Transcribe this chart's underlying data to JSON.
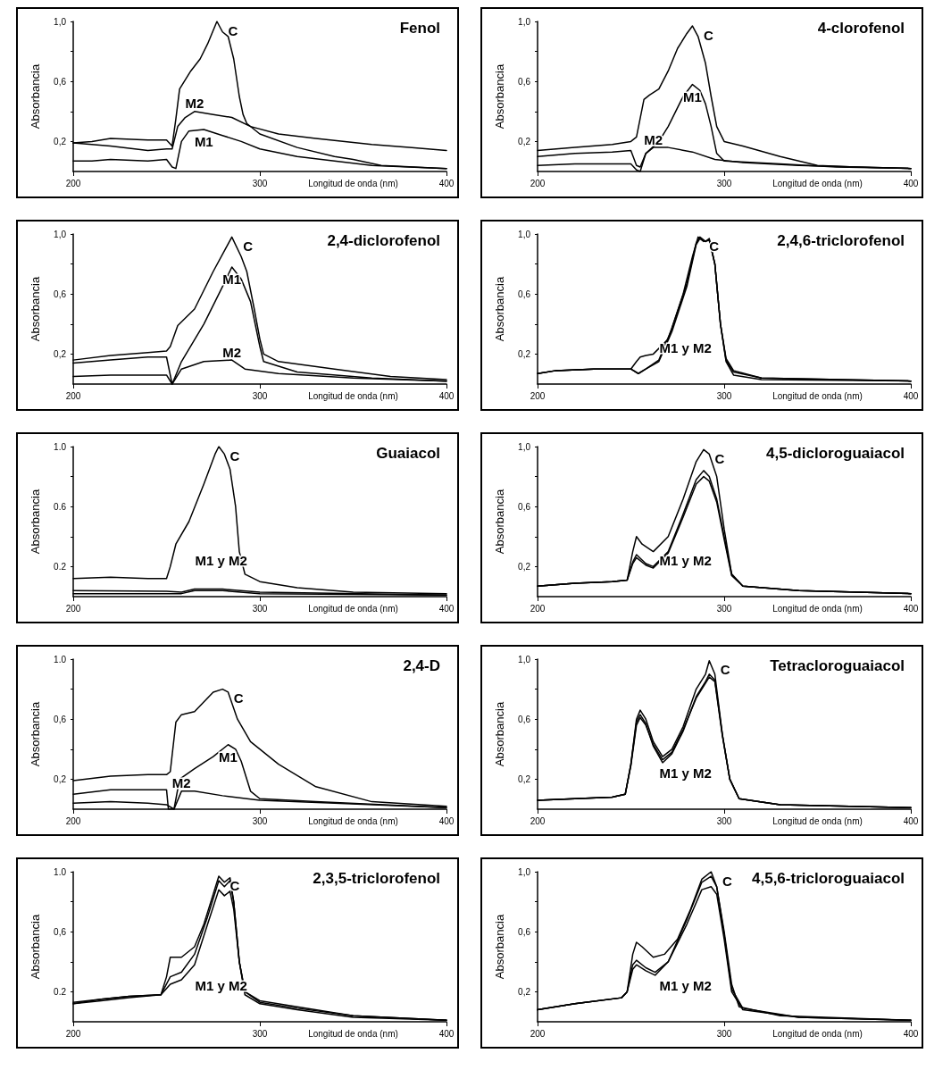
{
  "chart_data": [
    {
      "type": "line",
      "title": "Fenol",
      "xlabel": "Longitud de onda (nm)",
      "ylabel": "Absorbancia",
      "xlim": [
        200,
        400
      ],
      "ylim": [
        0,
        1.0
      ],
      "xticks": [
        200,
        300,
        400
      ],
      "yticks": [
        {
          "value": 0.2,
          "label": "0,2"
        },
        {
          "value": 0.4,
          "label": null
        },
        {
          "value": 0.6,
          "label": "0,6"
        },
        {
          "value": 0.8,
          "label": null
        },
        {
          "value": 1.0,
          "label": "1,0"
        }
      ],
      "series": [
        {
          "name": "C",
          "color": "#000000",
          "x": [
            200,
            210,
            220,
            240,
            250,
            253,
            255,
            257,
            263,
            268,
            272,
            277,
            280,
            283,
            286,
            289,
            291,
            293,
            300,
            320,
            340,
            350,
            365,
            400
          ],
          "values": [
            0.19,
            0.2,
            0.22,
            0.21,
            0.21,
            0.17,
            0.35,
            0.55,
            0.67,
            0.75,
            0.85,
            1.0,
            0.93,
            0.9,
            0.75,
            0.5,
            0.38,
            0.32,
            0.25,
            0.16,
            0.1,
            0.08,
            0.04,
            0.02
          ]
        },
        {
          "name": "M1",
          "color": "#000000",
          "x": [
            200,
            210,
            220,
            240,
            250,
            253,
            255,
            258,
            262,
            270,
            280,
            290,
            300,
            320,
            340,
            360,
            380,
            400
          ],
          "values": [
            0.07,
            0.07,
            0.08,
            0.07,
            0.08,
            0.03,
            0.02,
            0.2,
            0.27,
            0.28,
            0.24,
            0.2,
            0.15,
            0.1,
            0.07,
            0.04,
            0.03,
            0.02
          ]
        },
        {
          "name": "M2",
          "color": "#000000",
          "x": [
            200,
            210,
            220,
            240,
            250,
            253,
            256,
            260,
            265,
            275,
            285,
            295,
            310,
            330,
            360,
            380,
            400
          ],
          "values": [
            0.19,
            0.18,
            0.17,
            0.14,
            0.15,
            0.15,
            0.3,
            0.36,
            0.4,
            0.38,
            0.36,
            0.3,
            0.25,
            0.22,
            0.18,
            0.16,
            0.14
          ]
        }
      ]
    },
    {
      "type": "line",
      "title": "4-clorofenol",
      "xlabel": "Longitud de onda (nm)",
      "ylabel": "Absorbancia",
      "xlim": [
        200,
        400
      ],
      "ylim": [
        0,
        1.0
      ],
      "xticks": [
        200,
        300,
        400
      ],
      "yticks": [
        {
          "value": 0.2,
          "label": "0,2"
        },
        {
          "value": 0.4,
          "label": null
        },
        {
          "value": 0.6,
          "label": "0,6"
        },
        {
          "value": 0.8,
          "label": null
        },
        {
          "value": 1.0,
          "label": "1,0"
        }
      ],
      "series": [
        {
          "name": "C",
          "color": "#000000",
          "x": [
            200,
            220,
            240,
            250,
            253,
            257,
            260,
            265,
            270,
            275,
            280,
            283,
            286,
            290,
            293,
            296,
            300,
            310,
            330,
            350,
            370,
            400
          ],
          "values": [
            0.14,
            0.16,
            0.18,
            0.2,
            0.23,
            0.48,
            0.51,
            0.55,
            0.67,
            0.82,
            0.92,
            0.97,
            0.9,
            0.72,
            0.5,
            0.3,
            0.2,
            0.17,
            0.1,
            0.04,
            0.03,
            0.02
          ]
        },
        {
          "name": "M1",
          "color": "#000000",
          "x": [
            200,
            220,
            240,
            250,
            253,
            255,
            258,
            265,
            270,
            278,
            283,
            287,
            290,
            293,
            296,
            300,
            330,
            360,
            400
          ],
          "values": [
            0.1,
            0.12,
            0.13,
            0.14,
            0.04,
            0.03,
            0.12,
            0.2,
            0.3,
            0.5,
            0.58,
            0.54,
            0.45,
            0.3,
            0.12,
            0.07,
            0.05,
            0.03,
            0.02
          ]
        },
        {
          "name": "M2",
          "color": "#000000",
          "x": [
            200,
            220,
            240,
            250,
            253,
            255,
            258,
            262,
            270,
            283,
            295,
            310,
            340,
            400
          ],
          "values": [
            0.04,
            0.05,
            0.05,
            0.05,
            0.01,
            0.0,
            0.12,
            0.16,
            0.16,
            0.13,
            0.08,
            0.06,
            0.04,
            0.02
          ]
        }
      ]
    },
    {
      "type": "line",
      "title": "2,4-diclorofenol",
      "xlabel": "Longitud de onda (nm)",
      "ylabel": "Absorbancia",
      "xlim": [
        200,
        400
      ],
      "ylim": [
        0,
        1.0
      ],
      "xticks": [
        200,
        300,
        400
      ],
      "yticks": [
        {
          "value": 0.2,
          "label": "0,2"
        },
        {
          "value": 0.4,
          "label": null
        },
        {
          "value": 0.6,
          "label": "0,6"
        },
        {
          "value": 0.8,
          "label": null
        },
        {
          "value": 1.0,
          "label": "1,0"
        }
      ],
      "series": [
        {
          "name": "C",
          "color": "#000000",
          "x": [
            200,
            220,
            240,
            250,
            252,
            256,
            265,
            275,
            285,
            290,
            293,
            297,
            300,
            302,
            310,
            340,
            370,
            400
          ],
          "values": [
            0.16,
            0.19,
            0.21,
            0.22,
            0.25,
            0.39,
            0.5,
            0.75,
            0.98,
            0.85,
            0.75,
            0.5,
            0.3,
            0.2,
            0.15,
            0.1,
            0.05,
            0.03
          ]
        },
        {
          "name": "M1",
          "color": "#000000",
          "x": [
            200,
            220,
            240,
            250,
            253,
            258,
            270,
            280,
            285,
            290,
            295,
            300,
            302,
            320,
            360,
            400
          ],
          "values": [
            0.14,
            0.16,
            0.18,
            0.18,
            0.0,
            0.15,
            0.4,
            0.65,
            0.78,
            0.7,
            0.55,
            0.25,
            0.15,
            0.08,
            0.04,
            0.02
          ]
        },
        {
          "name": "M2",
          "color": "#000000",
          "x": [
            200,
            220,
            240,
            250,
            253,
            258,
            270,
            285,
            292,
            310,
            350,
            400
          ],
          "values": [
            0.05,
            0.06,
            0.06,
            0.06,
            0.0,
            0.1,
            0.15,
            0.16,
            0.1,
            0.07,
            0.04,
            0.02
          ]
        }
      ]
    },
    {
      "type": "line",
      "title": "2,4,6-triclorofenol",
      "xlabel": "Longitud de onda (nm)",
      "ylabel": "Absorbancia",
      "xlim": [
        200,
        400
      ],
      "ylim": [
        0,
        1.0
      ],
      "xticks": [
        200,
        300,
        400
      ],
      "yticks": [
        {
          "value": 0.2,
          "label": "0,2"
        },
        {
          "value": 0.4,
          "label": null
        },
        {
          "value": 0.6,
          "label": "0,6"
        },
        {
          "value": 0.8,
          "label": null
        },
        {
          "value": 1.0,
          "label": "1,0"
        }
      ],
      "series": [
        {
          "name": "C",
          "color": "#000000",
          "x": [
            200,
            210,
            230,
            250,
            253,
            255,
            258,
            262,
            270,
            278,
            283,
            286,
            289,
            292,
            295,
            298,
            301,
            305,
            320,
            400
          ],
          "values": [
            0.07,
            0.09,
            0.1,
            0.1,
            0.15,
            0.18,
            0.19,
            0.2,
            0.3,
            0.6,
            0.85,
            0.98,
            0.95,
            0.96,
            0.8,
            0.4,
            0.15,
            0.06,
            0.03,
            0.02
          ]
        },
        {
          "color": "#000000",
          "x": [
            200,
            210,
            230,
            250,
            254,
            258,
            265,
            272,
            280,
            285,
            287,
            290,
            292,
            295,
            298,
            301,
            305,
            320,
            400
          ],
          "values": [
            0.07,
            0.09,
            0.1,
            0.1,
            0.07,
            0.1,
            0.15,
            0.35,
            0.65,
            0.93,
            0.97,
            0.95,
            0.96,
            0.8,
            0.4,
            0.16,
            0.08,
            0.04,
            0.02
          ]
        },
        {
          "color": "#000000",
          "x": [
            200,
            210,
            230,
            250,
            254,
            258,
            265,
            272,
            280,
            285,
            287,
            290,
            292,
            295,
            298,
            301,
            305,
            320,
            400
          ],
          "values": [
            0.07,
            0.09,
            0.1,
            0.1,
            0.07,
            0.1,
            0.16,
            0.37,
            0.67,
            0.94,
            0.98,
            0.95,
            0.97,
            0.8,
            0.4,
            0.17,
            0.09,
            0.04,
            0.02
          ]
        }
      ],
      "annotations": [
        "M1 y M2"
      ]
    },
    {
      "type": "line",
      "title": "Guaiacol",
      "xlabel": "Longitud de onda (nm)",
      "ylabel": "Absorbancia",
      "xlim": [
        200,
        400
      ],
      "ylim": [
        0,
        1.0
      ],
      "xticks": [
        200,
        300,
        400
      ],
      "yticks": [
        {
          "value": 0.2,
          "label": "0.2"
        },
        {
          "value": 0.4,
          "label": null
        },
        {
          "value": 0.6,
          "label": "0.6"
        },
        {
          "value": 0.8,
          "label": null
        },
        {
          "value": 1.0,
          "label": "1.0"
        }
      ],
      "series": [
        {
          "name": "C",
          "color": "#000000",
          "x": [
            200,
            220,
            240,
            250,
            252,
            255,
            262,
            270,
            276,
            278,
            281,
            284,
            287,
            289,
            292,
            300,
            320,
            350,
            400
          ],
          "values": [
            0.12,
            0.13,
            0.12,
            0.12,
            0.2,
            0.35,
            0.5,
            0.75,
            0.95,
            1.0,
            0.95,
            0.85,
            0.6,
            0.3,
            0.15,
            0.1,
            0.06,
            0.03,
            0.02
          ]
        },
        {
          "color": "#000000",
          "x": [
            200,
            250,
            258,
            265,
            280,
            300,
            400
          ],
          "values": [
            0.04,
            0.035,
            0.03,
            0.05,
            0.05,
            0.03,
            0.01
          ]
        },
        {
          "color": "#000000",
          "x": [
            200,
            250,
            258,
            265,
            280,
            300,
            400
          ],
          "values": [
            0.02,
            0.02,
            0.02,
            0.04,
            0.04,
            0.02,
            0.01
          ]
        }
      ],
      "annotations": [
        "M1 y M2"
      ]
    },
    {
      "type": "line",
      "title": "4,5-dicloroguaiacol",
      "xlabel": "Longitud de onda (nm)",
      "ylabel": "Absorbancia",
      "xlim": [
        200,
        400
      ],
      "ylim": [
        0,
        1.0
      ],
      "xticks": [
        200,
        300,
        400
      ],
      "yticks": [
        {
          "value": 0.2,
          "label": "0,2"
        },
        {
          "value": 0.4,
          "label": null
        },
        {
          "value": 0.6,
          "label": "0,6"
        },
        {
          "value": 0.8,
          "label": null
        },
        {
          "value": 1.0,
          "label": "1,0"
        }
      ],
      "series": [
        {
          "name": "C",
          "color": "#000000",
          "x": [
            200,
            220,
            240,
            248,
            251,
            253,
            256,
            262,
            270,
            278,
            285,
            289,
            292,
            296,
            300,
            304,
            310,
            340,
            400
          ],
          "values": [
            0.07,
            0.09,
            0.1,
            0.11,
            0.3,
            0.4,
            0.35,
            0.3,
            0.4,
            0.65,
            0.9,
            0.98,
            0.95,
            0.8,
            0.45,
            0.15,
            0.07,
            0.04,
            0.02
          ]
        },
        {
          "color": "#000000",
          "x": [
            200,
            220,
            240,
            248,
            251,
            253,
            258,
            262,
            270,
            278,
            285,
            289,
            292,
            296,
            300,
            304,
            310,
            340,
            400
          ],
          "values": [
            0.07,
            0.09,
            0.1,
            0.11,
            0.23,
            0.28,
            0.22,
            0.2,
            0.3,
            0.55,
            0.78,
            0.84,
            0.8,
            0.65,
            0.4,
            0.15,
            0.07,
            0.04,
            0.02
          ]
        },
        {
          "color": "#000000",
          "x": [
            200,
            220,
            240,
            248,
            251,
            253,
            258,
            262,
            270,
            278,
            285,
            289,
            292,
            296,
            300,
            304,
            310,
            340,
            400
          ],
          "values": [
            0.07,
            0.09,
            0.1,
            0.11,
            0.22,
            0.26,
            0.21,
            0.19,
            0.29,
            0.53,
            0.75,
            0.8,
            0.77,
            0.63,
            0.38,
            0.14,
            0.07,
            0.04,
            0.02
          ]
        }
      ],
      "annotations": [
        "M1 y M2"
      ]
    },
    {
      "type": "line",
      "title": "2,4-D",
      "xlabel": "Longitud de onda (nm)",
      "ylabel": "Absorbancia",
      "xlim": [
        200,
        400
      ],
      "ylim": [
        0,
        1.0
      ],
      "xticks": [
        200,
        300,
        400
      ],
      "yticks": [
        {
          "value": 0.2,
          "label": "0,2"
        },
        {
          "value": 0.4,
          "label": null
        },
        {
          "value": 0.6,
          "label": "0,6"
        },
        {
          "value": 0.8,
          "label": null
        },
        {
          "value": 1.0,
          "label": "1.0"
        }
      ],
      "series": [
        {
          "name": "C",
          "color": "#000000",
          "x": [
            200,
            220,
            240,
            250,
            252,
            255,
            258,
            265,
            275,
            280,
            283,
            288,
            295,
            310,
            330,
            360,
            400
          ],
          "values": [
            0.19,
            0.22,
            0.23,
            0.23,
            0.25,
            0.58,
            0.63,
            0.65,
            0.78,
            0.8,
            0.78,
            0.6,
            0.45,
            0.3,
            0.15,
            0.05,
            0.02
          ]
        },
        {
          "name": "M1",
          "color": "#000000",
          "x": [
            200,
            220,
            240,
            250,
            251,
            254,
            257,
            265,
            275,
            283,
            287,
            290,
            295,
            300,
            330,
            400
          ],
          "values": [
            0.1,
            0.13,
            0.13,
            0.13,
            0.0,
            0.0,
            0.2,
            0.27,
            0.35,
            0.43,
            0.4,
            0.32,
            0.12,
            0.07,
            0.05,
            0.01
          ]
        },
        {
          "name": "M2",
          "color": "#000000",
          "x": [
            200,
            220,
            240,
            250,
            254,
            258,
            265,
            280,
            300,
            340,
            400
          ],
          "values": [
            0.04,
            0.05,
            0.04,
            0.03,
            0.0,
            0.12,
            0.12,
            0.09,
            0.06,
            0.04,
            0.01
          ]
        }
      ]
    },
    {
      "type": "line",
      "title": "Tetracloroguaiacol",
      "xlabel": "Longitud de onda (nm)",
      "ylabel": "Absorbancia",
      "xlim": [
        200,
        400
      ],
      "ylim": [
        0,
        1.0
      ],
      "xticks": [
        200,
        300,
        400
      ],
      "yticks": [
        {
          "value": 0.2,
          "label": "0,2"
        },
        {
          "value": 0.4,
          "label": null
        },
        {
          "value": 0.6,
          "label": "0,6"
        },
        {
          "value": 0.8,
          "label": null
        },
        {
          "value": 1.0,
          "label": "1,0"
        }
      ],
      "series": [
        {
          "name": "C",
          "color": "#000000",
          "x": [
            200,
            220,
            240,
            247,
            250,
            253,
            255,
            258,
            262,
            267,
            272,
            278,
            285,
            290,
            292,
            295,
            299,
            303,
            308,
            330,
            400
          ],
          "values": [
            0.06,
            0.07,
            0.08,
            0.1,
            0.3,
            0.6,
            0.66,
            0.6,
            0.45,
            0.35,
            0.4,
            0.55,
            0.8,
            0.9,
            0.99,
            0.9,
            0.5,
            0.2,
            0.07,
            0.03,
            0.01
          ]
        },
        {
          "color": "#000000",
          "x": [
            200,
            220,
            240,
            247,
            250,
            253,
            255,
            258,
            262,
            267,
            272,
            278,
            285,
            290,
            292,
            295,
            299,
            303,
            308,
            330,
            400
          ],
          "values": [
            0.06,
            0.07,
            0.08,
            0.1,
            0.3,
            0.58,
            0.63,
            0.57,
            0.42,
            0.31,
            0.37,
            0.52,
            0.75,
            0.85,
            0.9,
            0.86,
            0.5,
            0.2,
            0.07,
            0.03,
            0.01
          ]
        },
        {
          "color": "#000000",
          "x": [
            200,
            220,
            240,
            247,
            250,
            253,
            255,
            258,
            262,
            267,
            272,
            278,
            285,
            290,
            292,
            295,
            299,
            303,
            308,
            330,
            400
          ],
          "values": [
            0.06,
            0.07,
            0.08,
            0.1,
            0.29,
            0.56,
            0.61,
            0.56,
            0.43,
            0.33,
            0.38,
            0.53,
            0.74,
            0.84,
            0.88,
            0.85,
            0.49,
            0.2,
            0.07,
            0.03,
            0.01
          ]
        }
      ],
      "annotations": [
        "M1 y M2"
      ]
    },
    {
      "type": "line",
      "title": "2,3,5-triclorofenol",
      "xlabel": "Longitud de onda (nm)",
      "ylabel": "Absorbancia",
      "xlim": [
        200,
        400
      ],
      "ylim": [
        0,
        1.0
      ],
      "xticks": [
        200,
        300,
        400
      ],
      "yticks": [
        {
          "value": 0.2,
          "label": "0.2"
        },
        {
          "value": 0.4,
          "label": null
        },
        {
          "value": 0.6,
          "label": "0,6"
        },
        {
          "value": 0.8,
          "label": null
        },
        {
          "value": 1.0,
          "label": "1.0"
        }
      ],
      "series": [
        {
          "name": "C",
          "color": "#000000",
          "x": [
            200,
            215,
            230,
            247,
            250,
            252,
            258,
            265,
            270,
            275,
            278,
            281,
            284,
            286,
            289,
            292,
            300,
            320,
            350,
            400
          ],
          "values": [
            0.13,
            0.15,
            0.17,
            0.18,
            0.3,
            0.43,
            0.43,
            0.5,
            0.65,
            0.85,
            0.97,
            0.93,
            0.96,
            0.8,
            0.4,
            0.2,
            0.14,
            0.1,
            0.04,
            0.01
          ]
        },
        {
          "color": "#000000",
          "x": [
            200,
            215,
            230,
            247,
            252,
            258,
            265,
            272,
            278,
            281,
            284,
            286,
            289,
            292,
            300,
            320,
            350,
            400
          ],
          "values": [
            0.12,
            0.15,
            0.17,
            0.18,
            0.3,
            0.33,
            0.45,
            0.7,
            0.94,
            0.9,
            0.94,
            0.8,
            0.4,
            0.2,
            0.13,
            0.09,
            0.04,
            0.01
          ]
        },
        {
          "color": "#000000",
          "x": [
            200,
            215,
            230,
            247,
            252,
            258,
            265,
            272,
            278,
            281,
            284,
            286,
            289,
            292,
            300,
            320,
            350,
            400
          ],
          "values": [
            0.12,
            0.14,
            0.16,
            0.18,
            0.25,
            0.28,
            0.38,
            0.65,
            0.88,
            0.84,
            0.87,
            0.75,
            0.4,
            0.18,
            0.12,
            0.08,
            0.03,
            0.01
          ]
        }
      ],
      "annotations": [
        "M1 y M2"
      ]
    },
    {
      "type": "line",
      "title": "4,5,6-tricloroguaiacol",
      "xlabel": "Longitud de onda (nm)",
      "ylabel": "Absorbancia",
      "xlim": [
        200,
        400
      ],
      "ylim": [
        0,
        1.0
      ],
      "xticks": [
        200,
        300,
        400
      ],
      "yticks": [
        {
          "value": 0.2,
          "label": "0,2"
        },
        {
          "value": 0.4,
          "label": null
        },
        {
          "value": 0.6,
          "label": "0,6"
        },
        {
          "value": 0.8,
          "label": null
        },
        {
          "value": 1.0,
          "label": "1,0"
        }
      ],
      "series": [
        {
          "name": "C",
          "color": "#000000",
          "x": [
            200,
            220,
            245,
            248,
            251,
            253,
            256,
            262,
            268,
            275,
            282,
            288,
            293,
            296,
            300,
            304,
            308,
            330,
            400
          ],
          "values": [
            0.08,
            0.12,
            0.16,
            0.2,
            0.45,
            0.53,
            0.5,
            0.43,
            0.45,
            0.55,
            0.75,
            0.95,
            1.0,
            0.9,
            0.6,
            0.25,
            0.1,
            0.04,
            0.01
          ]
        },
        {
          "color": "#000000",
          "x": [
            200,
            220,
            245,
            248,
            251,
            253,
            258,
            263,
            270,
            280,
            288,
            293,
            296,
            300,
            304,
            310,
            340,
            400
          ],
          "values": [
            0.08,
            0.12,
            0.16,
            0.2,
            0.38,
            0.41,
            0.36,
            0.33,
            0.4,
            0.65,
            0.88,
            0.9,
            0.85,
            0.55,
            0.2,
            0.08,
            0.03,
            0.01
          ]
        },
        {
          "color": "#000000",
          "x": [
            200,
            220,
            245,
            248,
            251,
            253,
            258,
            263,
            270,
            280,
            288,
            293,
            296,
            300,
            304,
            310,
            340,
            400
          ],
          "values": [
            0.08,
            0.12,
            0.16,
            0.2,
            0.35,
            0.38,
            0.34,
            0.31,
            0.4,
            0.68,
            0.93,
            0.97,
            0.9,
            0.58,
            0.22,
            0.09,
            0.03,
            0.01
          ]
        }
      ],
      "annotations": [
        "M1 y M2"
      ]
    }
  ]
}
